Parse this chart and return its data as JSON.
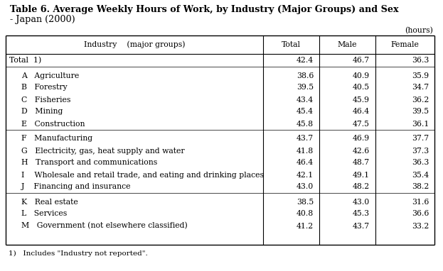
{
  "title_line1": "Table 6. Average Weekly Hours of Work, by Industry (Major Groups) and Sex",
  "title_line2": "- Japan (2000)",
  "units_label": "(hours)",
  "footnote": "1)   Includes \"Industry not reported\".",
  "col_headers": [
    "Industry    (major groups)",
    "Total",
    "Male",
    "Female"
  ],
  "rows": [
    {
      "label": "Total  1)",
      "indent": false,
      "separator_after": true,
      "total": "42.4",
      "male": "46.7",
      "female": "36.3",
      "extra_space_before": false
    },
    {
      "label": "A   Agriculture",
      "indent": true,
      "separator_after": false,
      "total": "38.6",
      "male": "40.9",
      "female": "35.9",
      "extra_space_before": true
    },
    {
      "label": "B   Forestry",
      "indent": true,
      "separator_after": false,
      "total": "39.5",
      "male": "40.5",
      "female": "34.7",
      "extra_space_before": false
    },
    {
      "label": "C   Fisheries",
      "indent": true,
      "separator_after": false,
      "total": "43.4",
      "male": "45.9",
      "female": "36.2",
      "extra_space_before": false
    },
    {
      "label": "D   Mining",
      "indent": true,
      "separator_after": false,
      "total": "45.4",
      "male": "46.4",
      "female": "39.5",
      "extra_space_before": false
    },
    {
      "label": "E   Construction",
      "indent": true,
      "separator_after": true,
      "total": "45.8",
      "male": "47.5",
      "female": "36.1",
      "extra_space_before": false
    },
    {
      "label": "F   Manufacturing",
      "indent": true,
      "separator_after": false,
      "total": "43.7",
      "male": "46.9",
      "female": "37.7",
      "extra_space_before": true
    },
    {
      "label": "G   Electricity, gas, heat supply and water",
      "indent": true,
      "separator_after": false,
      "total": "41.8",
      "male": "42.6",
      "female": "37.3",
      "extra_space_before": false
    },
    {
      "label": "H   Transport and communications",
      "indent": true,
      "separator_after": false,
      "total": "46.4",
      "male": "48.7",
      "female": "36.3",
      "extra_space_before": false
    },
    {
      "label": "I    Wholesale and retail trade, and eating and drinking places",
      "indent": true,
      "separator_after": false,
      "total": "42.1",
      "male": "49.1",
      "female": "35.4",
      "extra_space_before": false
    },
    {
      "label": "J    Financing and insurance",
      "indent": true,
      "separator_after": true,
      "total": "43.0",
      "male": "48.2",
      "female": "38.2",
      "extra_space_before": false
    },
    {
      "label": "K   Real estate",
      "indent": true,
      "separator_after": false,
      "total": "38.5",
      "male": "43.0",
      "female": "31.6",
      "extra_space_before": true
    },
    {
      "label": "L   Services",
      "indent": true,
      "separator_after": false,
      "total": "40.8",
      "male": "45.3",
      "female": "36.6",
      "extra_space_before": false
    },
    {
      "label": "M   Government (not elsewhere classified)",
      "indent": true,
      "separator_after": false,
      "total": "41.2",
      "male": "43.7",
      "female": "33.2",
      "extra_space_before": false
    }
  ],
  "font_size": 7.8,
  "bg_color": "#ffffff"
}
